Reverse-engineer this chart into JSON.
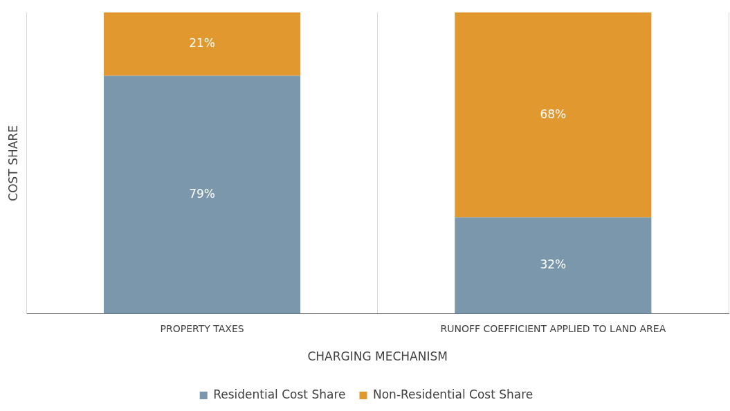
{
  "chart_data": {
    "type": "bar",
    "xlabel": "CHARGING MECHANISM",
    "ylabel": "COST SHARE",
    "categories": [
      "PROPERTY TAXES",
      "RUNOFF COEFFICIENT APPLIED TO LAND AREA"
    ],
    "stacked": true,
    "data_labels": true,
    "grid": "x",
    "legend": "bottom",
    "tick_labels": "x",
    "series": [
      {
        "name": "Residential Cost Share",
        "color": "#7a97ab",
        "values": [
          79,
          32
        ],
        "value_labels": [
          "79%",
          "32%"
        ]
      },
      {
        "name": "Non-Residential Cost Share",
        "color": "#e1982f",
        "values": [
          21,
          68
        ],
        "value_labels": [
          "21%",
          "68%"
        ]
      }
    ]
  }
}
